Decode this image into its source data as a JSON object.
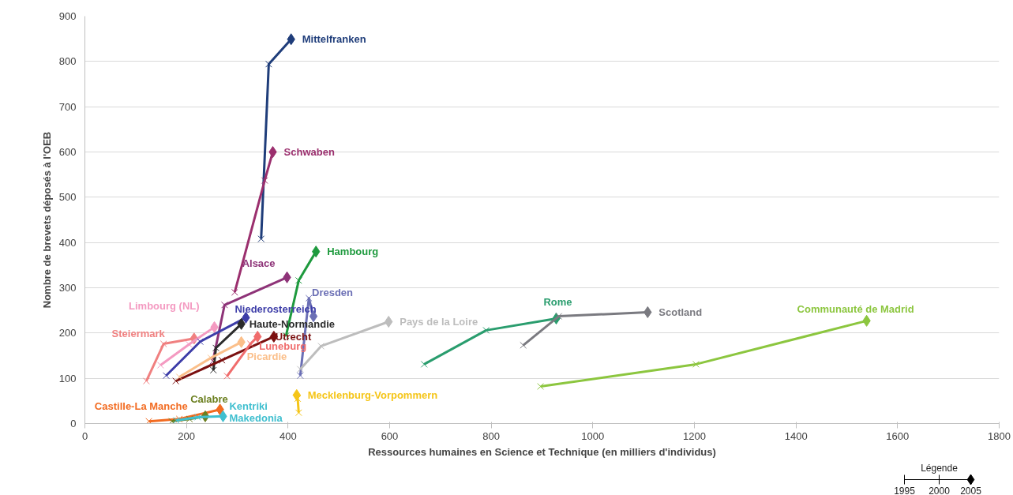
{
  "chart_data": {
    "type": "line",
    "xlabel": "Ressources humaines en Science et Technique (en milliers d'individus)",
    "ylabel": "Nombre de brevets déposés à l'OEB",
    "xlim": [
      0,
      1800
    ],
    "ylim": [
      0,
      900
    ],
    "xticks": [
      0,
      200,
      400,
      600,
      800,
      1000,
      1200,
      1400,
      1600,
      1800
    ],
    "yticks": [
      0,
      100,
      200,
      300,
      400,
      500,
      600,
      700,
      800,
      900
    ],
    "grid": "y",
    "marker": "cross",
    "legend_title": "Légende",
    "annotations": [
      "1995",
      "2000",
      "2005"
    ],
    "series": [
      {
        "name": "Mittelfranken",
        "color": "#1f3d7a",
        "x": [
          347,
          362,
          406
        ],
        "values": [
          408,
          794,
          849
        ]
      },
      {
        "name": "Schwaben",
        "color": "#9b2f6e",
        "x": [
          295,
          354,
          370
        ],
        "values": [
          290,
          537,
          600
        ]
      },
      {
        "name": "Alsace",
        "color": "#8e3378",
        "x": [
          252,
          275,
          398
        ],
        "values": [
          138,
          262,
          323
        ]
      },
      {
        "name": "Hambourg",
        "color": "#1e9a3e",
        "x": [
          396,
          421,
          455
        ],
        "values": [
          194,
          316,
          380
        ]
      },
      {
        "name": "Dresden",
        "color": "#6b6fb5",
        "x": [
          424,
          441,
          450
        ],
        "values": [
          106,
          277,
          237
        ]
      },
      {
        "name": "Pays de la Loire",
        "color": "#bdbdbd",
        "x": [
          424,
          465,
          598
        ],
        "values": [
          120,
          171,
          225
        ]
      },
      {
        "name": "Mecklenburg-Vorpommern",
        "color": "#f5c518",
        "x": [
          421,
          419,
          417
        ],
        "values": [
          24,
          55,
          63
        ]
      },
      {
        "name": "Rome",
        "color": "#2a9d6e",
        "x": [
          668,
          790,
          928
        ],
        "values": [
          131,
          206,
          232
        ]
      },
      {
        "name": "Scotland",
        "color": "#7a7a80",
        "x": [
          863,
          933,
          1108
        ],
        "values": [
          173,
          237,
          246
        ]
      },
      {
        "name": "Communauté de Madrid",
        "color": "#8cc63f",
        "x": [
          897,
          1203,
          1539
        ],
        "values": [
          82,
          131,
          227
        ]
      },
      {
        "name": "Steiermark",
        "color": "#f08080",
        "x": [
          121,
          155,
          215
        ],
        "values": [
          94,
          176,
          188
        ]
      },
      {
        "name": "Limbourg (NL)",
        "color": "#f49ac1",
        "x": [
          149,
          205,
          255
        ],
        "values": [
          129,
          175,
          213
        ]
      },
      {
        "name": "Niederosterreich",
        "color": "#3d3da8",
        "x": [
          160,
          227,
          317
        ],
        "values": [
          106,
          181,
          234
        ]
      },
      {
        "name": "Haute-Normandie",
        "color": "#2b2b2b",
        "x": [
          253,
          258,
          308
        ],
        "values": [
          118,
          167,
          220
        ]
      },
      {
        "name": "Utrecht",
        "color": "#7b1010",
        "x": [
          179,
          270,
          372
        ],
        "values": [
          94,
          140,
          192
        ]
      },
      {
        "name": "Luneburg",
        "color": "#f06c6c",
        "x": [
          280,
          326,
          340
        ],
        "values": [
          105,
          176,
          192
        ]
      },
      {
        "name": "Picardie",
        "color": "#fbbf8a",
        "x": [
          186,
          248,
          308
        ],
        "values": [
          103,
          145,
          180
        ]
      },
      {
        "name": "Castille-La Manche",
        "color": "#f26b21",
        "x": [
          126,
          186,
          266
        ],
        "values": [
          5,
          10,
          31
        ]
      },
      {
        "name": "Calabre",
        "color": "#6b7f1f",
        "x": [
          171,
          206,
          237
        ],
        "values": [
          5,
          10,
          16
        ]
      },
      {
        "name": "Kentriki Makedonia",
        "color": "#3fbfcf",
        "x": [
          180,
          222,
          272
        ],
        "values": [
          7,
          14,
          16
        ]
      }
    ]
  }
}
